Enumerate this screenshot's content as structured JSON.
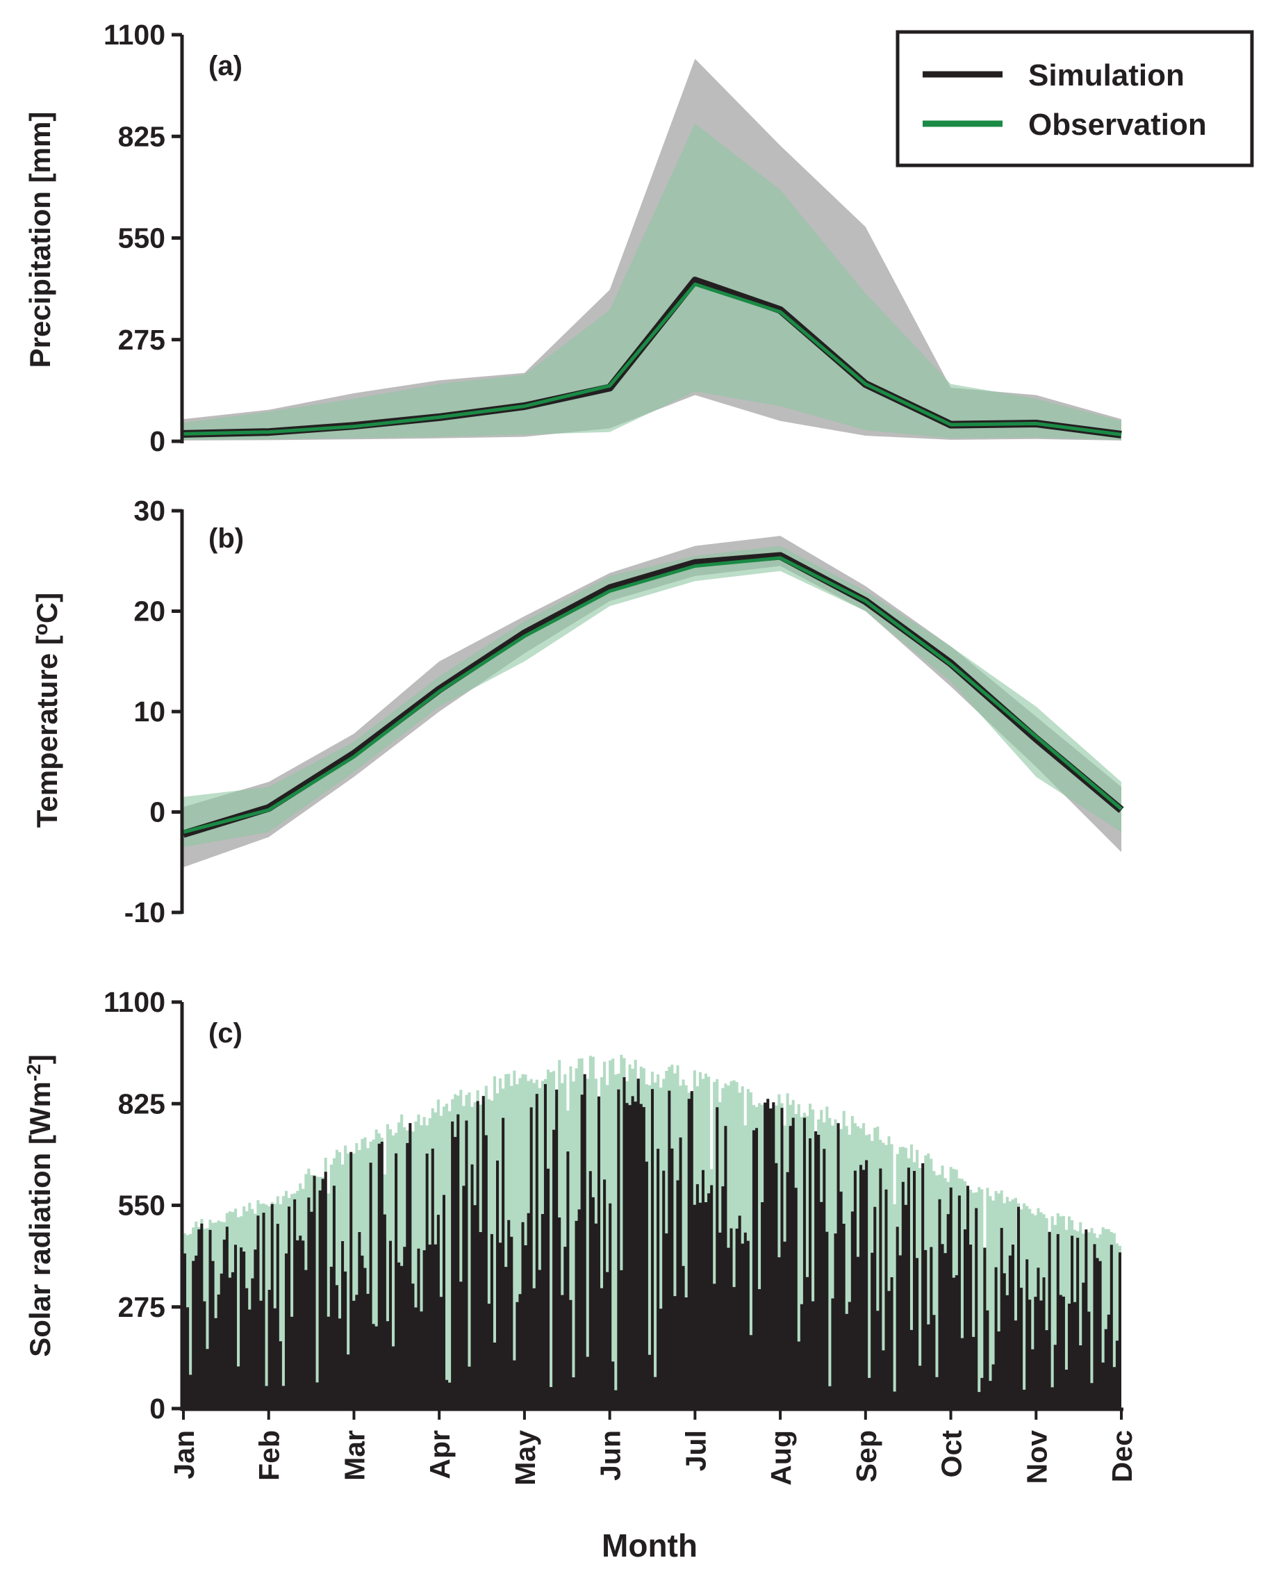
{
  "figure": {
    "xlabel": "Month",
    "months": [
      "Jan",
      "Feb",
      "Mar",
      "Apr",
      "May",
      "Jun",
      "Jul",
      "Aug",
      "Sep",
      "Oct",
      "Nov",
      "Dec"
    ],
    "colors": {
      "simulation_line": "#231f20",
      "observation_line": "#1a8a45",
      "simulation_band": "#bcbcbc",
      "observation_band": "#8fc6a3",
      "axis": "#231f20"
    }
  },
  "legend": {
    "items": [
      {
        "label": "Simulation",
        "color": "#231f20"
      },
      {
        "label": "Observation",
        "color": "#1a8a45"
      }
    ]
  },
  "chart_data": [
    {
      "id": "a",
      "type": "line",
      "panel_label": "(a)",
      "ylabel": "Precipitation [mm]",
      "ylim": [
        0,
        1100
      ],
      "yticks": [
        "0",
        "275",
        "550",
        "825",
        "1100"
      ],
      "categories": [
        "Jan",
        "Feb",
        "Mar",
        "Apr",
        "May",
        "Jun",
        "Jul",
        "Aug",
        "Sep",
        "Oct",
        "Nov",
        "Dec"
      ],
      "series": [
        {
          "name": "Simulation",
          "values": [
            20,
            25,
            42,
            65,
            95,
            145,
            435,
            355,
            155,
            45,
            48,
            18
          ],
          "band_low": [
            2,
            3,
            5,
            8,
            12,
            35,
            125,
            55,
            15,
            4,
            6,
            2
          ],
          "band_high": [
            60,
            85,
            130,
            165,
            185,
            410,
            1035,
            800,
            580,
            145,
            125,
            60
          ]
        },
        {
          "name": "Observation",
          "values": [
            20,
            25,
            40,
            65,
            95,
            150,
            425,
            350,
            155,
            45,
            48,
            18
          ],
          "band_low": [
            4,
            5,
            8,
            12,
            18,
            25,
            135,
            95,
            30,
            8,
            10,
            4
          ],
          "band_high": [
            50,
            80,
            115,
            155,
            180,
            355,
            860,
            680,
            400,
            155,
            115,
            55
          ]
        }
      ]
    },
    {
      "id": "b",
      "type": "line",
      "panel_label": "(b)",
      "ylabel": "Temperature [",
      "ylabel_sup": "o",
      "ylabel_end": "C]",
      "ylim": [
        -10,
        30
      ],
      "yticks": [
        "-10",
        "0",
        "10",
        "20",
        "30"
      ],
      "categories": [
        "Jan",
        "Feb",
        "Mar",
        "Apr",
        "May",
        "Jun",
        "Jul",
        "Aug",
        "Sep",
        "Oct",
        "Nov",
        "Dec"
      ],
      "series": [
        {
          "name": "Simulation",
          "values": [
            -2.2,
            0.4,
            5.8,
            12.2,
            17.8,
            22.3,
            24.8,
            25.5,
            21.0,
            14.8,
            7.3,
            0.2
          ],
          "band_low": [
            -5.5,
            -2.5,
            3.5,
            10.0,
            15.8,
            21.0,
            23.5,
            24.5,
            20.0,
            12.5,
            4.5,
            -4.0
          ],
          "band_high": [
            0.5,
            3.0,
            7.8,
            15.0,
            19.5,
            23.8,
            26.5,
            27.5,
            22.5,
            16.5,
            9.5,
            2.5
          ]
        },
        {
          "name": "Observation",
          "values": [
            -2.0,
            0.2,
            5.5,
            12.0,
            17.5,
            22.0,
            24.5,
            25.3,
            21.0,
            14.7,
            7.5,
            0.3
          ],
          "band_low": [
            -3.5,
            -2.0,
            4.0,
            10.5,
            15.0,
            20.5,
            23.0,
            24.0,
            20.0,
            13.0,
            3.5,
            -2.0
          ],
          "band_high": [
            1.5,
            2.5,
            7.0,
            13.5,
            19.0,
            23.5,
            25.5,
            26.5,
            22.0,
            16.5,
            10.5,
            3.0
          ]
        }
      ]
    },
    {
      "id": "c",
      "type": "bar",
      "panel_label": "(c)",
      "ylabel": "Solar radiation [Wm",
      "ylabel_sup": "-2",
      "ylabel_end": "]",
      "ylim": [
        0,
        1100
      ],
      "yticks": [
        "0",
        "275",
        "550",
        "825",
        "1100"
      ],
      "series": [
        {
          "name": "Simulation",
          "description": "daily values, Jan–Dec, range approx. 40–1000"
        },
        {
          "name": "Observation",
          "description": "daily values, Jan–Dec, range approx. 40–1010"
        }
      ],
      "envelope_obs": [
        500,
        575,
        730,
        840,
        920,
        960,
        910,
        850,
        780,
        650,
        545,
        470
      ],
      "envelope_sim": [
        480,
        540,
        690,
        800,
        880,
        910,
        860,
        820,
        740,
        610,
        520,
        450
      ]
    }
  ]
}
